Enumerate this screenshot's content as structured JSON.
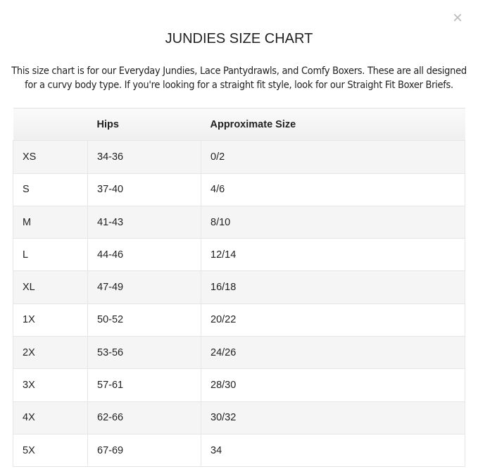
{
  "close_label": "×",
  "title": "JUNDIES SIZE CHART",
  "description": "This size chart is for our Everyday Jundies, Lace Pantydrawls, and Comfy Boxers. These are all designed for a curvy body type. If you're looking for a straight fit style, look for our Straight Fit Boxer Briefs.",
  "table": {
    "headers": [
      "",
      "Hips",
      "Approximate Size"
    ],
    "rows": [
      [
        "XS",
        "34-36",
        "0/2"
      ],
      [
        "S",
        "37-40",
        "4/6"
      ],
      [
        "M",
        "41-43",
        "8/10"
      ],
      [
        "L",
        "44-46",
        "12/14"
      ],
      [
        "XL",
        "47-49",
        "16/18"
      ],
      [
        "1X",
        "50-52",
        "20/22"
      ],
      [
        "2X",
        "53-56",
        "24/26"
      ],
      [
        "3X",
        "57-61",
        "28/30"
      ],
      [
        "4X",
        "62-66",
        "30/32"
      ],
      [
        "5X",
        "67-69",
        "34"
      ]
    ]
  }
}
